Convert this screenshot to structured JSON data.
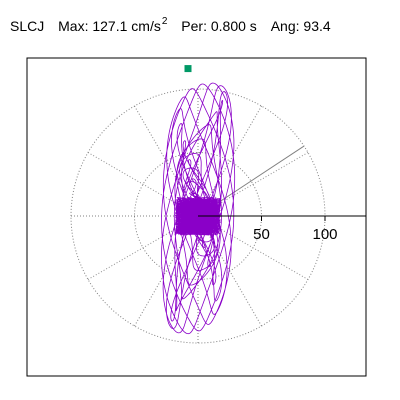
{
  "header": {
    "station": "SLCJ",
    "max_label": "Max:",
    "max_value": "127.1 cm/s",
    "max_exp": "2",
    "per_label": "Per:",
    "per_value": "0.800 s",
    "ang_label": "Ang:",
    "ang_value": "93.4"
  },
  "chart_data": {
    "type": "scatter",
    "title": "SLCJ",
    "max_value": 127.1,
    "max_unit": "cm/s^2",
    "period_s": 0.8,
    "angle_deg": 93.4,
    "radial_ticks": [
      50,
      100
    ],
    "radial_tick_labels": [
      "50",
      "100"
    ],
    "rings": [
      50,
      100
    ],
    "axis_range": [
      -127.1,
      127.1
    ],
    "peak_marker": {
      "x": 0.0,
      "y": 127.1
    },
    "trace_orientation": "north-south",
    "colors": {
      "trace": "#8a00c8",
      "marker": "#009966",
      "grid": "#808080"
    },
    "grid": true
  }
}
